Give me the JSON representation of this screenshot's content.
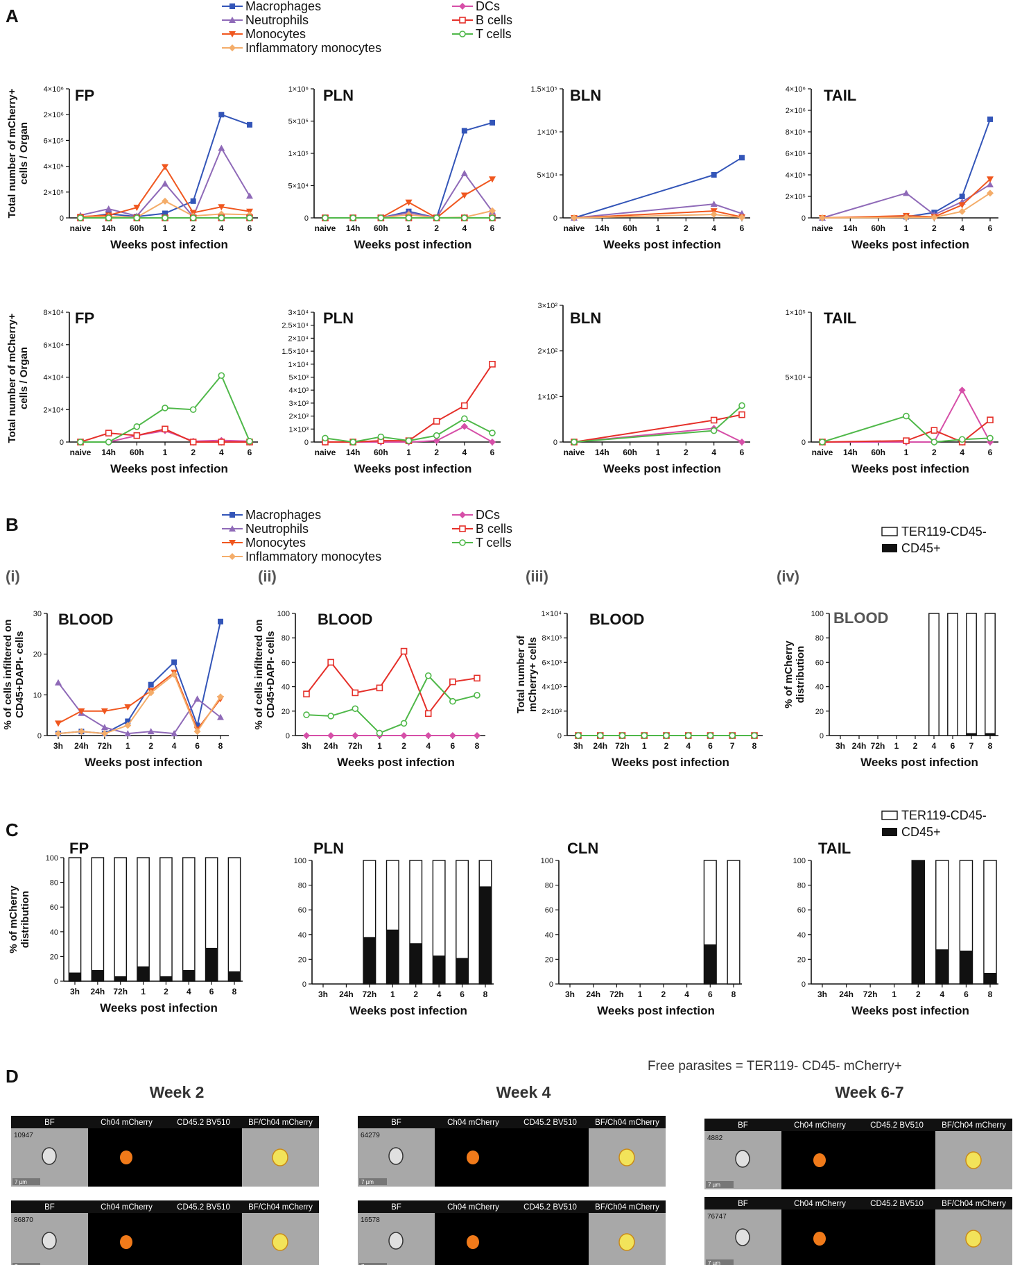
{
  "x_axis_title": "Weeks post infection",
  "colors": {
    "Macrophages": "#3355b8",
    "Neutrophils": "#8f6ab8",
    "Monocytes": "#f0571f",
    "Inflammatory monocytes": "#f4ad6a",
    "DCs": "#d64fa8",
    "B cells": "#e5302a",
    "T cells": "#4fb849"
  },
  "legend_A": {
    "left": [
      "Macrophages",
      "Neutrophils",
      "Monocytes",
      "Inflammatory monocytes"
    ],
    "right": [
      "DCs",
      "B cells",
      "T cells"
    ]
  },
  "bar_legend": {
    "white": "TER119-CD45-",
    "black": "CD45+"
  },
  "panels": {
    "A": "A",
    "B": "B",
    "C": "C",
    "D": "D",
    "bi": "(i)",
    "bii": "(ii)",
    "biii": "(iii)",
    "biv": "(iv)"
  },
  "chart_data": [
    {
      "id": "A-top-FP",
      "type": "line",
      "title": "FP",
      "ylabel": "Total number of mCherry+ cells / Organ",
      "xlabel": "Weeks post infection",
      "categories": [
        "naive",
        "14h",
        "60h",
        "1",
        "2",
        "4",
        "6"
      ],
      "yticks": [
        "0",
        "2×10⁵",
        "4×10⁵",
        "6×10⁵",
        "2×10⁶",
        "4×10⁶"
      ],
      "ylim": [
        0,
        4000000
      ],
      "series": [
        {
          "name": "Macrophages",
          "values": [
            0,
            30000,
            10000,
            35000,
            130000,
            2000000,
            1450000
          ]
        },
        {
          "name": "Neutrophils",
          "values": [
            20000,
            70000,
            15000,
            265000,
            10000,
            540000,
            170000
          ]
        },
        {
          "name": "Monocytes",
          "values": [
            10000,
            20000,
            80000,
            395000,
            40000,
            85000,
            50000
          ]
        },
        {
          "name": "Inflammatory monocytes",
          "values": [
            5000,
            10000,
            5000,
            130000,
            15000,
            30000,
            25000
          ]
        },
        {
          "name": "DCs",
          "values": [
            0,
            0,
            0,
            0,
            0,
            0,
            0
          ]
        },
        {
          "name": "B cells",
          "values": [
            0,
            0,
            0,
            0,
            0,
            0,
            0
          ]
        },
        {
          "name": "T cells",
          "values": [
            0,
            0,
            0,
            0,
            0,
            0,
            0
          ]
        }
      ]
    },
    {
      "id": "A-top-PLN",
      "type": "line",
      "title": "PLN",
      "xlabel": "Weeks post infection",
      "categories": [
        "naive",
        "14h",
        "60h",
        "1",
        "2",
        "4",
        "6"
      ],
      "yticks": [
        "0",
        "5×10⁴",
        "1×10⁵",
        "5×10⁵",
        "1×10⁶"
      ],
      "ylim": [
        0,
        1000000
      ],
      "series": [
        {
          "name": "Macrophages",
          "values": [
            0,
            0,
            0,
            10000,
            0,
            380000,
            480000
          ]
        },
        {
          "name": "Neutrophils",
          "values": [
            0,
            0,
            0,
            8000,
            0,
            69000,
            10000
          ]
        },
        {
          "name": "Monocytes",
          "values": [
            0,
            0,
            0,
            24000,
            0,
            35000,
            60000
          ]
        },
        {
          "name": "Inflammatory monocytes",
          "values": [
            0,
            0,
            0,
            5000,
            0,
            1000,
            11000
          ]
        },
        {
          "name": "DCs",
          "values": [
            0,
            0,
            0,
            0,
            0,
            0,
            0
          ]
        },
        {
          "name": "B cells",
          "values": [
            0,
            0,
            0,
            0,
            0,
            0,
            0
          ]
        },
        {
          "name": "T cells",
          "values": [
            0,
            0,
            0,
            0,
            0,
            0,
            0
          ]
        }
      ]
    },
    {
      "id": "A-top-BLN",
      "type": "line",
      "title": "BLN",
      "xlabel": "Weeks post infection",
      "categories": [
        "naive",
        "14h",
        "60h",
        "1",
        "2",
        "4",
        "6"
      ],
      "yticks": [
        "0",
        "5×10⁴",
        "1×10⁵",
        "1.5×10⁵"
      ],
      "ylim": [
        0,
        150000
      ],
      "series": [
        {
          "name": "Macrophages",
          "values": [
            0,
            null,
            null,
            null,
            null,
            50000,
            70000
          ]
        },
        {
          "name": "Neutrophils",
          "values": [
            0,
            null,
            null,
            null,
            null,
            16000,
            5000
          ]
        },
        {
          "name": "Monocytes",
          "values": [
            0,
            null,
            null,
            null,
            null,
            8000,
            1000
          ]
        },
        {
          "name": "Inflammatory monocytes",
          "values": [
            0,
            null,
            null,
            null,
            null,
            4000,
            500
          ]
        }
      ]
    },
    {
      "id": "A-top-TAIL",
      "type": "line",
      "title": "TAIL",
      "xlabel": "Weeks post infection",
      "categories": [
        "naive",
        "14h",
        "60h",
        "1",
        "2",
        "4",
        "6"
      ],
      "yticks": [
        "0",
        "2×10⁵",
        "4×10⁵",
        "6×10⁵",
        "8×10⁵",
        "2×10⁶",
        "4×10⁶"
      ],
      "ylim": [
        0,
        4000000
      ],
      "series": [
        {
          "name": "Macrophages",
          "values": [
            0,
            null,
            null,
            10000,
            50000,
            200000,
            1500000
          ]
        },
        {
          "name": "Neutrophils",
          "values": [
            0,
            null,
            null,
            230000,
            30000,
            150000,
            310000
          ]
        },
        {
          "name": "Monocytes",
          "values": [
            0,
            null,
            null,
            20000,
            10000,
            120000,
            360000
          ]
        },
        {
          "name": "Inflammatory monocytes",
          "values": [
            0,
            null,
            null,
            5000,
            5000,
            60000,
            230000
          ]
        }
      ]
    },
    {
      "id": "A-bottom-FP",
      "type": "line",
      "title": "FP",
      "ylabel": "Total number of mCherry+ cells / Organ",
      "xlabel": "Weeks post infection",
      "categories": [
        "naive",
        "14h",
        "60h",
        "1",
        "2",
        "4",
        "6"
      ],
      "yticks": [
        "0",
        "2×10⁴",
        "4×10⁴",
        "6×10⁴",
        "8×10⁴"
      ],
      "ylim": [
        0,
        80000
      ],
      "series": [
        {
          "name": "DCs",
          "values": [
            0,
            0,
            4000,
            7000,
            500,
            1000,
            500
          ]
        },
        {
          "name": "B cells",
          "values": [
            0,
            5500,
            4000,
            8000,
            0,
            0,
            0
          ]
        },
        {
          "name": "T cells",
          "values": [
            0,
            0,
            9500,
            21000,
            20000,
            41000,
            500
          ]
        }
      ]
    },
    {
      "id": "A-bottom-PLN",
      "type": "line",
      "title": "PLN",
      "xlabel": "Weeks post infection",
      "categories": [
        "naive",
        "14h",
        "60h",
        "1",
        "2",
        "4",
        "6"
      ],
      "yticks": [
        "0",
        "1×10³",
        "2×10³",
        "3×10³",
        "4×10³",
        "5×10³",
        "1×10⁴",
        "1.5×10⁴",
        "2×10⁴",
        "2.5×10⁴",
        "3×10⁴"
      ],
      "ylim": [
        0,
        30000
      ],
      "series": [
        {
          "name": "DCs",
          "values": [
            0,
            0,
            0,
            0,
            100,
            1200,
            0
          ]
        },
        {
          "name": "B cells",
          "values": [
            0,
            0,
            100,
            100,
            1600,
            2800,
            10000
          ]
        },
        {
          "name": "T cells",
          "values": [
            300,
            0,
            400,
            100,
            500,
            1800,
            700
          ]
        }
      ]
    },
    {
      "id": "A-bottom-BLN",
      "type": "line",
      "title": "BLN",
      "xlabel": "Weeks post infection",
      "categories": [
        "naive",
        "14h",
        "60h",
        "1",
        "2",
        "4",
        "6"
      ],
      "yticks": [
        "0",
        "1×10²",
        "2×10²",
        "3×10²"
      ],
      "ylim": [
        0,
        300
      ],
      "series": [
        {
          "name": "DCs",
          "values": [
            0,
            null,
            null,
            null,
            null,
            30,
            0
          ]
        },
        {
          "name": "B cells",
          "values": [
            0,
            null,
            null,
            null,
            null,
            48,
            60
          ]
        },
        {
          "name": "T cells",
          "values": [
            0,
            null,
            null,
            null,
            null,
            25,
            80
          ]
        }
      ]
    },
    {
      "id": "A-bottom-TAIL",
      "type": "line",
      "title": "TAIL",
      "xlabel": "Weeks post infection",
      "categories": [
        "naive",
        "14h",
        "60h",
        "1",
        "2",
        "4",
        "6"
      ],
      "yticks": [
        "0",
        "5×10⁴",
        "1×10⁵"
      ],
      "ylim": [
        0,
        100000
      ],
      "series": [
        {
          "name": "DCs",
          "values": [
            0,
            null,
            null,
            0,
            0,
            40000,
            0
          ]
        },
        {
          "name": "B cells",
          "values": [
            0,
            null,
            null,
            1000,
            9000,
            0,
            17000
          ]
        },
        {
          "name": "T cells",
          "values": [
            0,
            null,
            null,
            20000,
            0,
            2000,
            3000
          ]
        }
      ]
    },
    {
      "id": "B-i",
      "type": "line",
      "title": "BLOOD",
      "ylabel": "% of cells infiltered on CD45+DAPI- cells",
      "xlabel": "Weeks post infection",
      "categories": [
        "3h",
        "24h",
        "72h",
        "1",
        "2",
        "4",
        "6",
        "8"
      ],
      "yticks": [
        "0",
        "10",
        "20",
        "30"
      ],
      "ylim": [
        0,
        30
      ],
      "series": [
        {
          "name": "Macrophages",
          "values": [
            0.5,
            1,
            0.5,
            3.5,
            12.5,
            18,
            2.5,
            28
          ]
        },
        {
          "name": "Neutrophils",
          "values": [
            13,
            5.5,
            2,
            0.5,
            1,
            0.5,
            9,
            4.5
          ]
        },
        {
          "name": "Monocytes",
          "values": [
            3,
            6,
            6,
            7,
            11,
            15.5,
            1.5,
            9
          ]
        },
        {
          "name": "Inflammatory monocytes",
          "values": [
            0.5,
            1,
            0.5,
            2.5,
            10.5,
            15,
            1,
            9.5
          ]
        }
      ]
    },
    {
      "id": "B-ii",
      "type": "line",
      "title": "BLOOD",
      "ylabel": "% of cells infiltered on CD45+DAPI- cells",
      "xlabel": "Weeks post infection",
      "categories": [
        "3h",
        "24h",
        "72h",
        "1",
        "2",
        "4",
        "6",
        "8"
      ],
      "yticks": [
        "0",
        "20",
        "40",
        "60",
        "80",
        "100"
      ],
      "ylim": [
        0,
        100
      ],
      "series": [
        {
          "name": "DCs",
          "values": [
            0,
            0,
            0,
            0,
            0,
            0,
            0,
            0
          ]
        },
        {
          "name": "B cells",
          "values": [
            34,
            60,
            35,
            39,
            69,
            18,
            44,
            47
          ]
        },
        {
          "name": "T cells",
          "values": [
            17,
            16,
            22,
            2,
            10,
            49,
            28,
            33
          ]
        }
      ]
    },
    {
      "id": "B-iii",
      "type": "line",
      "title": "BLOOD",
      "ylabel": "Total number of mCherry+ cells",
      "xlabel": "Weeks post infection",
      "categories": [
        "3h",
        "24h",
        "72h",
        "1",
        "2",
        "4",
        "6",
        "7",
        "8"
      ],
      "yticks": [
        "0",
        "2×10³",
        "4×10³",
        "6×10³",
        "8×10³",
        "1×10⁴"
      ],
      "ylim": [
        0,
        10000
      ],
      "series": [
        {
          "name": "DCs",
          "values": [
            0,
            0,
            0,
            0,
            0,
            0,
            0,
            0,
            0
          ]
        },
        {
          "name": "B cells",
          "values": [
            0,
            0,
            0,
            0,
            0,
            0,
            0,
            0,
            0
          ]
        },
        {
          "name": "T cells",
          "values": [
            0,
            0,
            0,
            0,
            0,
            0,
            0,
            0,
            0
          ]
        }
      ]
    },
    {
      "id": "B-iv",
      "type": "bar",
      "title": "BLOOD",
      "ylabel": "% of mCherry distribution",
      "xlabel": "Weeks post infection",
      "categories": [
        "3h",
        "24h",
        "72h",
        "1",
        "2",
        "4",
        "6",
        "7",
        "8"
      ],
      "yticks": [
        "0",
        "20",
        "40",
        "60",
        "80",
        "100"
      ],
      "ylim": [
        0,
        100
      ],
      "cd45_pos": [
        null,
        null,
        null,
        null,
        null,
        0,
        0,
        2,
        2
      ]
    },
    {
      "id": "C-FP",
      "type": "bar",
      "title": "FP",
      "ylabel": "% of mCherry distribution",
      "xlabel": "Weeks post infection",
      "categories": [
        "3h",
        "24h",
        "72h",
        "1",
        "2",
        "4",
        "6",
        "8"
      ],
      "yticks": [
        "0",
        "20",
        "40",
        "60",
        "80",
        "100"
      ],
      "ylim": [
        0,
        100
      ],
      "cd45_pos": [
        7,
        9,
        4,
        12,
        4,
        9,
        27,
        8
      ]
    },
    {
      "id": "C-PLN",
      "type": "bar",
      "title": "PLN",
      "xlabel": "Weeks post infection",
      "categories": [
        "3h",
        "24h",
        "72h",
        "1",
        "2",
        "4",
        "6",
        "8"
      ],
      "yticks": [
        "0",
        "20",
        "40",
        "60",
        "80",
        "100"
      ],
      "ylim": [
        0,
        100
      ],
      "cd45_pos": [
        null,
        null,
        38,
        44,
        33,
        23,
        21,
        79
      ]
    },
    {
      "id": "C-CLN",
      "type": "bar",
      "title": "CLN",
      "xlabel": "Weeks post infection",
      "categories": [
        "3h",
        "24h",
        "72h",
        "1",
        "2",
        "4",
        "6",
        "8"
      ],
      "yticks": [
        "0",
        "20",
        "40",
        "60",
        "80",
        "100"
      ],
      "ylim": [
        0,
        100
      ],
      "cd45_pos": [
        null,
        null,
        null,
        null,
        null,
        null,
        32,
        0
      ]
    },
    {
      "id": "C-TAIL",
      "type": "bar",
      "title": "TAIL",
      "xlabel": "Weeks post infection",
      "categories": [
        "3h",
        "24h",
        "72h",
        "1",
        "2",
        "4",
        "6",
        "8"
      ],
      "yticks": [
        "0",
        "20",
        "40",
        "60",
        "80",
        "100"
      ],
      "ylim": [
        0,
        100
      ],
      "cd45_pos": [
        null,
        null,
        null,
        null,
        100,
        28,
        27,
        9
      ]
    }
  ],
  "imaging": {
    "title": "Free parasites = TER119- CD45- mCherry+",
    "channels": [
      "BF",
      "Ch04 mCherry",
      "CD45.2 BV510",
      "BF/Ch04 mCherry"
    ],
    "scale": "7 µm",
    "groups": [
      {
        "label": "Week 2",
        "ids": [
          "10947",
          "86870"
        ]
      },
      {
        "label": "Week 4",
        "ids": [
          "64279",
          "16578"
        ]
      },
      {
        "label": "Week 6-7",
        "ids": [
          "4882",
          "76747"
        ]
      }
    ]
  }
}
